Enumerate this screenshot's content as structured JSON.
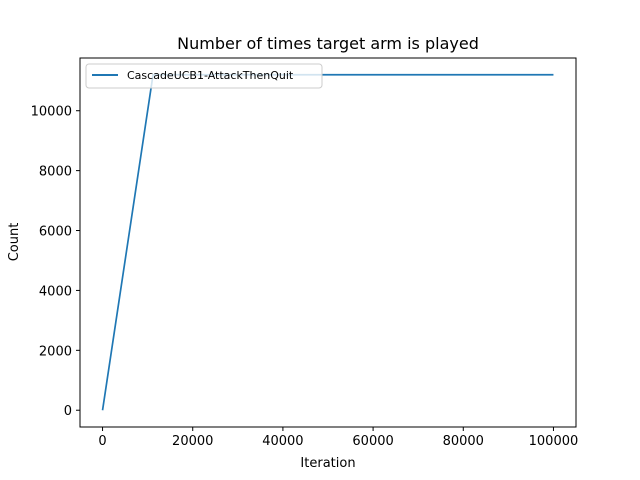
{
  "chart_data": {
    "type": "line",
    "title": "Number of times target arm is played",
    "xlabel": "Iteration",
    "ylabel": "Count",
    "xlim": [
      -5000,
      105000
    ],
    "ylim": [
      -560,
      11760
    ],
    "x_ticks": [
      0,
      20000,
      40000,
      60000,
      80000,
      100000
    ],
    "x_tick_labels": [
      "0",
      "20000",
      "40000",
      "60000",
      "80000",
      "100000"
    ],
    "y_ticks": [
      0,
      2000,
      4000,
      6000,
      8000,
      10000
    ],
    "y_tick_labels": [
      "0",
      "2000",
      "4000",
      "6000",
      "8000",
      "10000"
    ],
    "grid": false,
    "legend_placement": "upper-left",
    "series": [
      {
        "name": "CascadeUCB1-AttackThenQuit",
        "color": "#1f77b4",
        "x": [
          0,
          11200,
          20000,
          40000,
          60000,
          80000,
          100000
        ],
        "y": [
          0,
          11200,
          11200,
          11200,
          11200,
          11200,
          11200
        ]
      }
    ]
  }
}
